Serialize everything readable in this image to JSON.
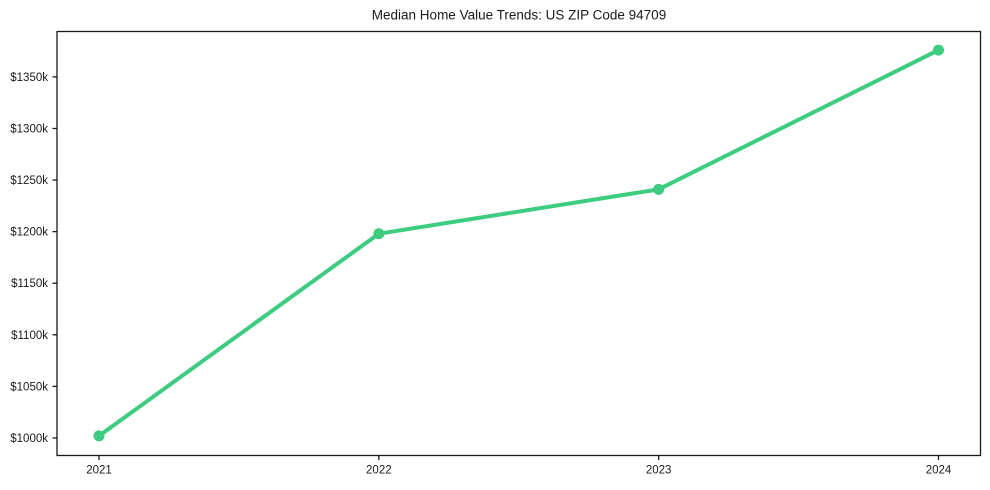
{
  "title": "Median Home Value Trends: US ZIP Code 94709",
  "colors": {
    "line": "#3dcc80",
    "axis": "#1a1a1a",
    "text": "#1a1a1a",
    "background": "#ffffff"
  },
  "chart_data": {
    "type": "line",
    "title": "Median Home Value Trends: US ZIP Code 94709",
    "xlabel": "",
    "ylabel": "",
    "x": [
      2021,
      2022,
      2023,
      2024
    ],
    "x_tick_labels": [
      "2021",
      "2022",
      "2023",
      "2024"
    ],
    "values": [
      1002,
      1198,
      1241,
      1376
    ],
    "values_unit": "thousand USD",
    "y_ticks": [
      1000,
      1050,
      1100,
      1150,
      1200,
      1250,
      1300,
      1350
    ],
    "y_tick_labels": [
      "$1000k",
      "$1050k",
      "$1100k",
      "$1150k",
      "$1200k",
      "$1250k",
      "$1300k",
      "$1350k"
    ],
    "ylim": [
      983,
      1394
    ],
    "grid": false,
    "legend": false,
    "marker": "circle",
    "line_width": 4,
    "marker_radius": 5.5
  }
}
